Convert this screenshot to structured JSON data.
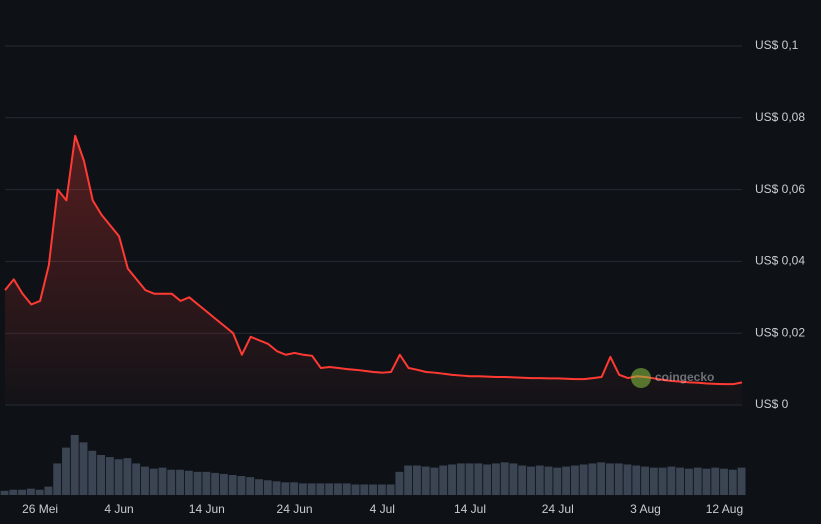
{
  "chart_data": [
    {
      "type": "line",
      "color": "#ff3a33",
      "grid": true,
      "watermark": "coingecko",
      "categories": [
        null,
        null,
        null,
        null,
        "26 Mei",
        null,
        null,
        null,
        null,
        null,
        null,
        null,
        null,
        "4 Jun",
        null,
        null,
        null,
        null,
        null,
        null,
        null,
        null,
        null,
        "14 Jun",
        null,
        null,
        null,
        null,
        null,
        null,
        null,
        null,
        null,
        "24 Jun",
        null,
        null,
        null,
        null,
        null,
        null,
        null,
        null,
        null,
        "4 Jul",
        null,
        null,
        null,
        null,
        null,
        null,
        null,
        null,
        null,
        "14 Jul",
        null,
        null,
        null,
        null,
        null,
        null,
        null,
        null,
        null,
        "24 Jul",
        null,
        null,
        null,
        null,
        null,
        null,
        null,
        null,
        null,
        "3 Aug",
        null,
        null,
        null,
        null,
        null,
        null,
        null,
        null,
        "12 Aug",
        null,
        null
      ],
      "values": [
        0.032,
        0.035,
        0.031,
        0.028,
        0.029,
        0.039,
        0.06,
        0.057,
        0.075,
        0.068,
        0.057,
        0.053,
        0.05,
        0.047,
        0.038,
        0.035,
        0.032,
        0.031,
        0.031,
        0.031,
        0.029,
        0.03,
        0.028,
        0.026,
        0.024,
        0.022,
        0.02,
        0.014,
        0.019,
        0.018,
        0.017,
        0.015,
        0.014,
        0.0145,
        0.014,
        0.0137,
        0.0103,
        0.0106,
        0.0103,
        0.01,
        0.0098,
        0.0095,
        0.0092,
        0.009,
        0.0092,
        0.014,
        0.0103,
        0.0098,
        0.0092,
        0.009,
        0.0087,
        0.0084,
        0.0082,
        0.008,
        0.008,
        0.0079,
        0.0078,
        0.0078,
        0.0077,
        0.0076,
        0.0075,
        0.0075,
        0.0074,
        0.0074,
        0.0073,
        0.0072,
        0.0072,
        0.0075,
        0.0078,
        0.0134,
        0.0084,
        0.0075,
        0.008,
        0.0078,
        0.0074,
        0.007,
        0.0067,
        0.0065,
        0.0063,
        0.0062,
        0.006,
        0.0059,
        0.0058,
        0.0058,
        0.0063
      ],
      "ylim": [
        0,
        0.1
      ],
      "yticks": [
        {
          "value": 0,
          "label": "US$ 0"
        },
        {
          "value": 0.02,
          "label": "US$ 0,02"
        },
        {
          "value": 0.04,
          "label": "US$ 0,04"
        },
        {
          "value": 0.06,
          "label": "US$ 0,06"
        },
        {
          "value": 0.08,
          "label": "US$ 0,08"
        },
        {
          "value": 0.1,
          "label": "US$ 0,1"
        }
      ]
    },
    {
      "type": "bar",
      "color": "#3b4452",
      "values": [
        4,
        5,
        5,
        6,
        5,
        8,
        30,
        45,
        57,
        50,
        42,
        38,
        36,
        34,
        35,
        30,
        27,
        25,
        26,
        24,
        24,
        23,
        22,
        22,
        21,
        20,
        19,
        18,
        17,
        15,
        14,
        13,
        12,
        12,
        11,
        11,
        11,
        11,
        11,
        11,
        10,
        10,
        10,
        10,
        10,
        22,
        28,
        28,
        27,
        26,
        28,
        29,
        30,
        30,
        30,
        29,
        30,
        31,
        30,
        28,
        27,
        28,
        27,
        26,
        27,
        28,
        29,
        30,
        31,
        30,
        30,
        29,
        28,
        27,
        26,
        26,
        27,
        26,
        25,
        26,
        25,
        26,
        25,
        24,
        26
      ]
    }
  ]
}
